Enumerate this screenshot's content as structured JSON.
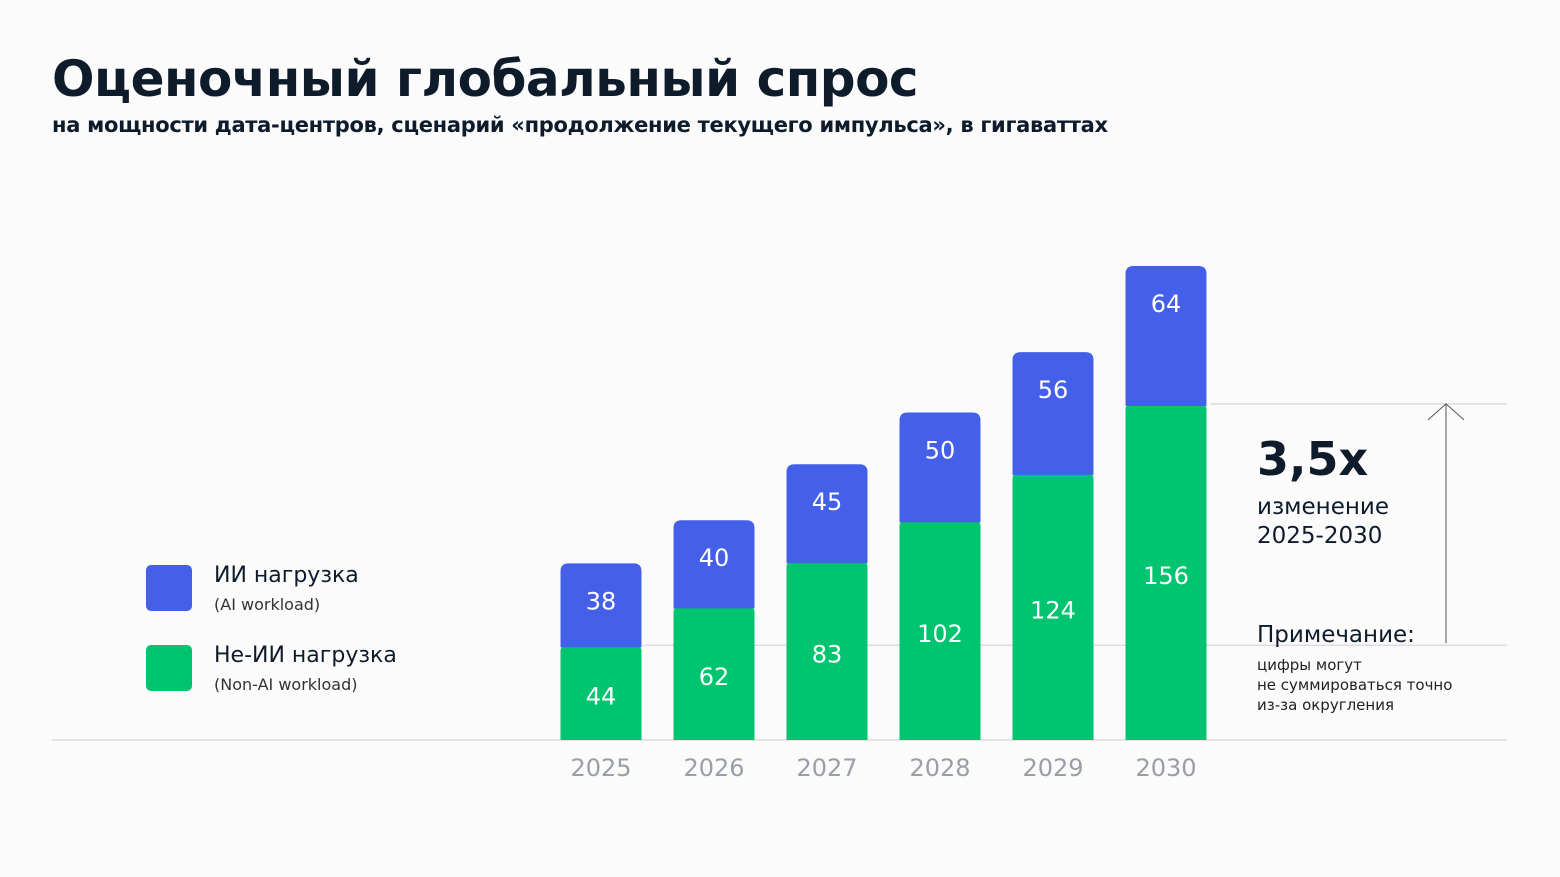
{
  "chart_data": {
    "type": "bar",
    "stacked": true,
    "title": "Оценочный глобальный спрос",
    "subtitle": "на мощности дата-центров, сценарий «продолжение текущего импульса», в гигаваттах",
    "categories": [
      "2025",
      "2026",
      "2027",
      "2028",
      "2029",
      "2030"
    ],
    "series": [
      {
        "name": "Не-ИИ нагрузка",
        "name_sub": "(Non-AI workload)",
        "color": "#00c46f",
        "values": [
          44,
          62,
          83,
          102,
          124,
          156
        ]
      },
      {
        "name": "ИИ нагрузка",
        "name_sub": "(AI workload)",
        "color": "#4560e8",
        "values": [
          38,
          40,
          45,
          50,
          56,
          64
        ]
      }
    ],
    "legend_placement": "left",
    "grid": false,
    "annotation": {
      "value": "3,5x",
      "label_line1": "изменение",
      "label_line2": "2025-2030"
    },
    "note": {
      "title": "Примечание:",
      "lines": [
        "цифры могут",
        "не суммироваться точно",
        "из-за округления"
      ]
    }
  }
}
